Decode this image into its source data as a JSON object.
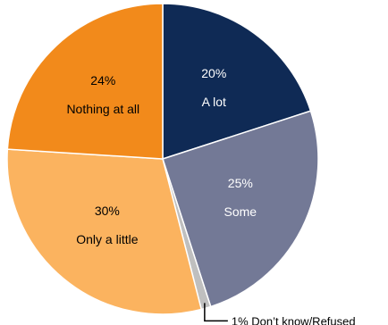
{
  "chart_data": {
    "type": "pie",
    "slices": [
      {
        "label": "A lot",
        "value": 20,
        "value_label": "20%",
        "color": "#0f2a55",
        "text_color": "#ffffff"
      },
      {
        "label": "Some",
        "value": 25,
        "value_label": "25%",
        "color": "#737996",
        "text_color": "#ffffff"
      },
      {
        "label": "Don’t know/Refused",
        "value": 1,
        "value_label": "1%",
        "color": "#bfbfbf",
        "text_color": "#000000",
        "callout": "1% Don’t know/Refused"
      },
      {
        "label": "Only a little",
        "value": 30,
        "value_label": "30%",
        "color": "#fbb35f",
        "text_color": "#000000"
      },
      {
        "label": "Nothing at all",
        "value": 24,
        "value_label": "24%",
        "color": "#f28a1b",
        "text_color": "#000000"
      }
    ],
    "start_angle": "12 o'clock",
    "direction": "clockwise",
    "legend": "none"
  }
}
